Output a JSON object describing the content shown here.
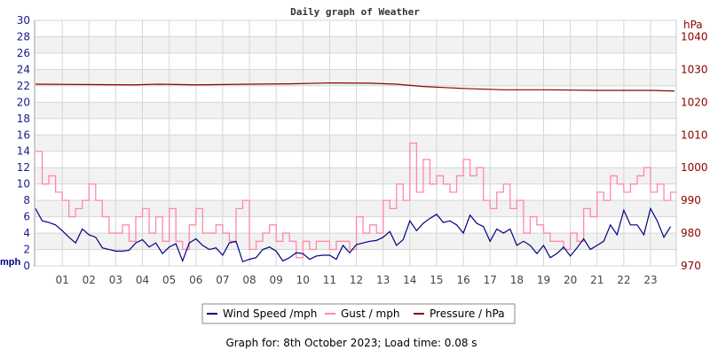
{
  "chart_data": {
    "type": "line",
    "title": "Daily graph of Weather",
    "xlabel": "",
    "ylabel_left": "mph",
    "ylabel_right": "hPa",
    "ylim_left": [
      0,
      30
    ],
    "ylim_right": [
      970,
      1045
    ],
    "xlim": [
      0,
      24
    ],
    "grid": true,
    "legend_position": "bottom",
    "left_ticks": [
      "0",
      "2",
      "4",
      "6",
      "8",
      "10",
      "12",
      "14",
      "16",
      "18",
      "20",
      "22",
      "24",
      "26",
      "28",
      "30"
    ],
    "right_ticks": [
      "970",
      "980",
      "990",
      "1000",
      "1010",
      "1020",
      "1030",
      "1040"
    ],
    "x_ticks": [
      "01",
      "02",
      "03",
      "04",
      "05",
      "06",
      "07",
      "08",
      "09",
      "10",
      "11",
      "12",
      "13",
      "14",
      "15",
      "16",
      "17",
      "18",
      "19",
      "20",
      "21",
      "22",
      "23"
    ],
    "x_step_hours": 0.25,
    "series": [
      {
        "name": "Wind Speed /mph",
        "color": "#000080",
        "axis": "left",
        "values": [
          7,
          5.5,
          5.3,
          5,
          4.3,
          3.5,
          2.8,
          4.5,
          3.8,
          3.5,
          2.2,
          2.0,
          1.8,
          1.8,
          1.9,
          2.8,
          3.2,
          2.3,
          2.8,
          1.5,
          2.3,
          2.7,
          0.6,
          2.8,
          3.3,
          2.5,
          2.0,
          2.2,
          1.3,
          2.8,
          3.0,
          0.5,
          0.8,
          1.0,
          2.0,
          2.3,
          1.8,
          0.6,
          1.0,
          1.6,
          1.5,
          0.8,
          1.2,
          1.3,
          1.3,
          0.8,
          2.5,
          1.6,
          2.6,
          2.8,
          3.0,
          3.1,
          3.5,
          4.2,
          2.5,
          3.2,
          5.5,
          4.3,
          5.2,
          5.8,
          6.3,
          5.3,
          5.5,
          5.0,
          4.0,
          6.2,
          5.2,
          4.8,
          3.0,
          4.5,
          4.0,
          4.5,
          2.5,
          3.0,
          2.5,
          1.5,
          2.5,
          1.0,
          1.5,
          2.3,
          1.2,
          2.2,
          3.3,
          2.0,
          2.5,
          3.0,
          5.0,
          3.8,
          6.8,
          5.0,
          5.0,
          3.8,
          7.0,
          5.5,
          3.5,
          4.8
        ]
      },
      {
        "name": "Gust / mph",
        "color": "#ff88aa",
        "axis": "left",
        "values": [
          14,
          10,
          11,
          9,
          8,
          6,
          7,
          8,
          10,
          8,
          6,
          4,
          4,
          5,
          3,
          6,
          7,
          4,
          6,
          3,
          7,
          3,
          2,
          5,
          7,
          4,
          4,
          5,
          4,
          3,
          7,
          8,
          2,
          3,
          4,
          5,
          3,
          4,
          3,
          1,
          3,
          2,
          3,
          3,
          2,
          3,
          3,
          2,
          6,
          4,
          5,
          4,
          8,
          7,
          10,
          8,
          15,
          9,
          13,
          10,
          11,
          10,
          9,
          11,
          13,
          11,
          12,
          8,
          7,
          9,
          10,
          7,
          8,
          4,
          6,
          5,
          4,
          3,
          3,
          2,
          4,
          3,
          7,
          6,
          9,
          8,
          11,
          10,
          9,
          10,
          11,
          12,
          9,
          10,
          8,
          9
        ]
      },
      {
        "name": "Pressure / hPa",
        "color": "#8b0000",
        "axis": "right",
        "x": [
          0,
          3.7,
          4.6,
          6,
          8,
          9.5,
          11,
          12.5,
          13.5,
          14.5,
          16,
          17.5,
          19,
          21,
          23,
          23.9
        ],
        "values": [
          1025.5,
          1025.3,
          1025.5,
          1025.3,
          1025.5,
          1025.6,
          1025.9,
          1025.8,
          1025.5,
          1024.8,
          1024.2,
          1023.8,
          1023.8,
          1023.6,
          1023.6,
          1023.4
        ]
      }
    ]
  },
  "footer": "Graph for: 8th October 2023; Load time: 0.08 s"
}
